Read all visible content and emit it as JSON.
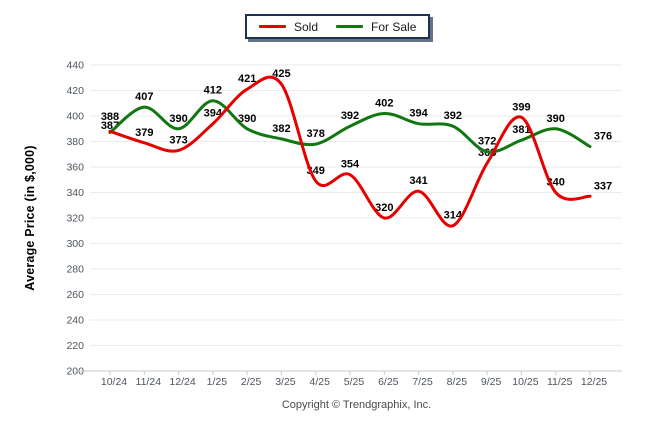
{
  "chart_data": {
    "type": "line",
    "title": "",
    "categories": [
      "10/24",
      "11/24",
      "12/24",
      "1/25",
      "2/25",
      "3/25",
      "4/25",
      "5/25",
      "6/25",
      "7/25",
      "8/25",
      "9/25",
      "10/25",
      "11/25",
      "12/25"
    ],
    "series": [
      {
        "name": "Sold",
        "color": "#e60000",
        "values": [
          388,
          379,
          373,
          394,
          421,
          425,
          349,
          354,
          320,
          341,
          314,
          363,
          399,
          340,
          337
        ]
      },
      {
        "name": "For Sale",
        "color": "#117711",
        "values": [
          387,
          407,
          390,
          412,
          390,
          382,
          378,
          392,
          402,
          394,
          392,
          372,
          381,
          390,
          376
        ]
      }
    ],
    "xlabel": "",
    "ylabel": "Average Price (in $,000)",
    "ylim": [
      200,
      440
    ],
    "ytick_step": 20,
    "grid": true,
    "smooth": true,
    "legend_position": "top-center",
    "data_labels": true,
    "colors": {
      "gridline": "#ebebeb",
      "axis_line": "#c6cacd",
      "tick_text": "#4d545c",
      "data_label": "#000000",
      "legend_border": "#1e3255"
    }
  },
  "footer": {
    "copyright": "Copyright © Trendgraphix, Inc."
  }
}
